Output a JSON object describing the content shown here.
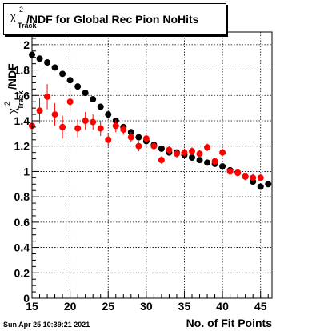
{
  "title": {
    "chi_symbol": "χ",
    "chi_superscript": "2",
    "chi_subscript": "Track",
    "text": "/NDF for Global Rec Pion NoHits"
  },
  "footer_timestamp": "Sun Apr 25 10:39:21 2021",
  "colors": {
    "series_black": "#000000",
    "series_red": "#ff0000",
    "grid": "#000000"
  },
  "chart_data": {
    "type": "scatter",
    "xlabel": "No. of Fit Points",
    "ylabel": "χ²_Track/NDF",
    "ylabel_parts": {
      "symbol": "χ",
      "sup": "2",
      "sub": "Track",
      "rest": "/NDF"
    },
    "xlim": [
      15,
      46.5
    ],
    "ylim": [
      0,
      2.1
    ],
    "xticks": [
      15,
      20,
      25,
      30,
      35,
      40,
      45
    ],
    "yticks": [
      0,
      0.2,
      0.4,
      0.6,
      0.8,
      1,
      1.2,
      1.4,
      1.6,
      1.8,
      2
    ],
    "ytick_labels": [
      "0",
      "0.2",
      "0.4",
      "0.6",
      "0.8",
      "1",
      "1.2",
      "1.4",
      "1.6",
      "1.8",
      "2"
    ],
    "grid": true,
    "series": [
      {
        "color": "#000000",
        "points": [
          {
            "x": 15,
            "y": 1.92
          },
          {
            "x": 16,
            "y": 1.89
          },
          {
            "x": 17,
            "y": 1.86
          },
          {
            "x": 18,
            "y": 1.82
          },
          {
            "x": 19,
            "y": 1.77
          },
          {
            "x": 20,
            "y": 1.72
          },
          {
            "x": 21,
            "y": 1.67
          },
          {
            "x": 22,
            "y": 1.62
          },
          {
            "x": 23,
            "y": 1.57
          },
          {
            "x": 24,
            "y": 1.51
          },
          {
            "x": 25,
            "y": 1.45
          },
          {
            "x": 26,
            "y": 1.4
          },
          {
            "x": 27,
            "y": 1.35
          },
          {
            "x": 28,
            "y": 1.31
          },
          {
            "x": 29,
            "y": 1.27
          },
          {
            "x": 30,
            "y": 1.24
          },
          {
            "x": 31,
            "y": 1.21
          },
          {
            "x": 32,
            "y": 1.18
          },
          {
            "x": 33,
            "y": 1.15
          },
          {
            "x": 34,
            "y": 1.15
          },
          {
            "x": 35,
            "y": 1.13
          },
          {
            "x": 36,
            "y": 1.11
          },
          {
            "x": 37,
            "y": 1.09
          },
          {
            "x": 38,
            "y": 1.07
          },
          {
            "x": 39,
            "y": 1.06
          },
          {
            "x": 40,
            "y": 1.04
          },
          {
            "x": 41,
            "y": 1.01
          },
          {
            "x": 42,
            "y": 0.99
          },
          {
            "x": 43,
            "y": 0.96
          },
          {
            "x": 44,
            "y": 0.92
          },
          {
            "x": 45,
            "y": 0.88
          },
          {
            "x": 46,
            "y": 0.9
          }
        ]
      },
      {
        "color": "#ff0000",
        "points": [
          {
            "x": 15,
            "y": 1.36,
            "err": 0.1
          },
          {
            "x": 16,
            "y": 1.48,
            "err": 0.1
          },
          {
            "x": 17,
            "y": 1.59,
            "err": 0.1
          },
          {
            "x": 18,
            "y": 1.45,
            "err": 0.09
          },
          {
            "x": 19,
            "y": 1.35,
            "err": 0.09
          },
          {
            "x": 20,
            "y": 1.55,
            "err": 0.08
          },
          {
            "x": 21,
            "y": 1.34,
            "err": 0.07
          },
          {
            "x": 22,
            "y": 1.4,
            "err": 0.07
          },
          {
            "x": 23,
            "y": 1.39,
            "err": 0.06
          },
          {
            "x": 24,
            "y": 1.34,
            "err": 0.06
          },
          {
            "x": 25,
            "y": 1.25,
            "err": 0.05
          },
          {
            "x": 26,
            "y": 1.36,
            "err": 0.05
          },
          {
            "x": 27,
            "y": 1.33,
            "err": 0.04
          },
          {
            "x": 28,
            "y": 1.27,
            "err": 0.04
          },
          {
            "x": 29,
            "y": 1.2,
            "err": 0.04
          },
          {
            "x": 30,
            "y": 1.26,
            "err": 0.03
          },
          {
            "x": 31,
            "y": 1.2,
            "err": 0.03
          },
          {
            "x": 32,
            "y": 1.09,
            "err": 0.03
          },
          {
            "x": 33,
            "y": 1.17,
            "err": 0.03
          },
          {
            "x": 34,
            "y": 1.14,
            "err": 0.03
          },
          {
            "x": 35,
            "y": 1.15,
            "err": 0.03
          },
          {
            "x": 36,
            "y": 1.16,
            "err": 0.03
          },
          {
            "x": 37,
            "y": 1.14,
            "err": 0.03
          },
          {
            "x": 38,
            "y": 1.19,
            "err": 0.03
          },
          {
            "x": 39,
            "y": 1.08,
            "err": 0.03
          },
          {
            "x": 40,
            "y": 1.15,
            "err": 0.03
          },
          {
            "x": 41,
            "y": 1.0,
            "err": 0.03
          },
          {
            "x": 42,
            "y": 0.99,
            "err": 0.03
          },
          {
            "x": 43,
            "y": 0.96,
            "err": 0.03
          },
          {
            "x": 44,
            "y": 0.95,
            "err": 0.03
          },
          {
            "x": 45,
            "y": 0.95,
            "err": 0.03
          }
        ]
      }
    ]
  }
}
